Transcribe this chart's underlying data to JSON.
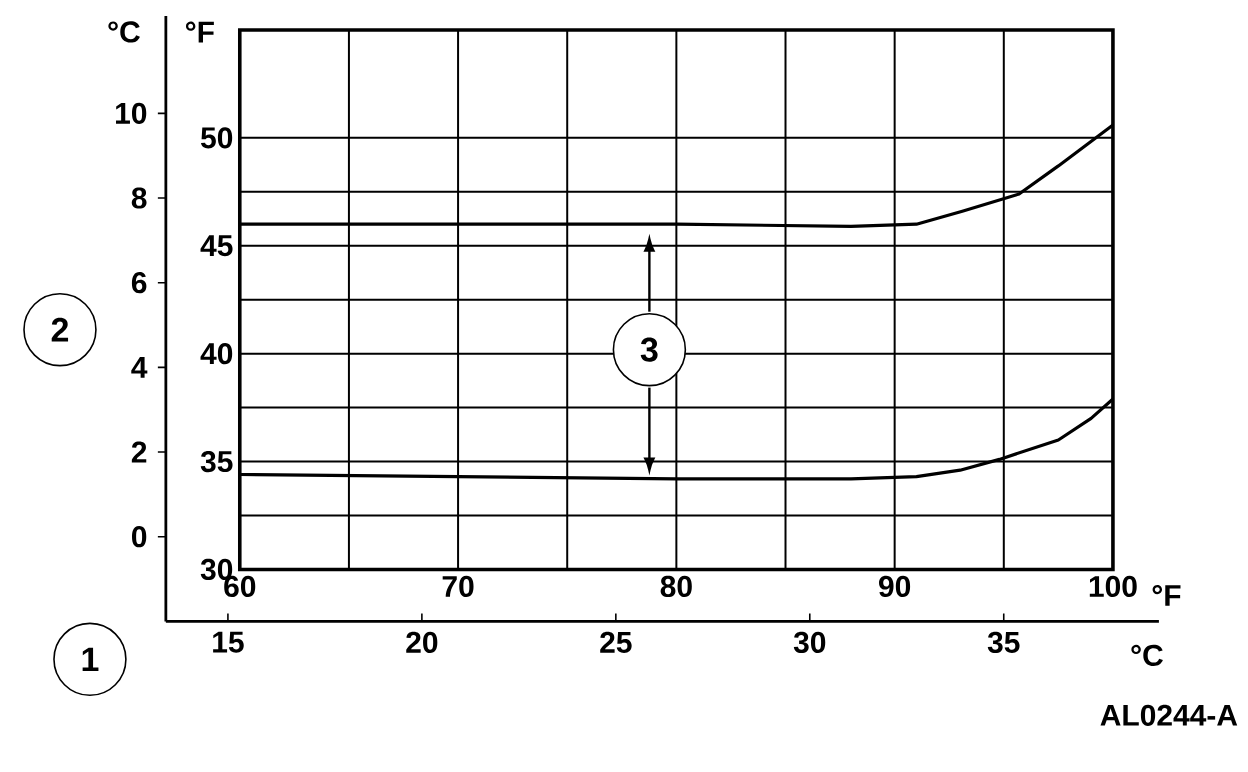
{
  "chart_data": {
    "type": "line",
    "xlabel": "°F",
    "x2label": "°C",
    "ylabel": "°F",
    "y2label": "°C",
    "xlim": [
      60,
      100
    ],
    "xticks": [
      60,
      70,
      80,
      90,
      100
    ],
    "ylim": [
      30,
      55
    ],
    "yticks": [
      30,
      35,
      40,
      45,
      50
    ],
    "x2lim": [
      13.4,
      39.0
    ],
    "x2ticks": [
      15,
      20,
      25,
      30,
      35
    ],
    "y2lim": [
      -2.0,
      12.3
    ],
    "y2ticks": [
      0,
      2,
      4,
      6,
      8,
      10
    ],
    "grid": true,
    "marker": "none",
    "line_style": "solid",
    "series": [
      {
        "color": "#000000",
        "x": [
          60,
          70,
          80,
          88,
          91,
          93.1,
          95.7,
          97.5,
          100
        ],
        "values": [
          46.0,
          46.0,
          46.0,
          45.9,
          46.0,
          46.6,
          47.4,
          48.7,
          50.6
        ]
      },
      {
        "color": "#000000",
        "x": [
          60,
          70,
          80,
          88,
          91,
          93,
          94.8,
          97.5,
          99,
          100
        ],
        "values": [
          34.4,
          34.3,
          34.2,
          34.2,
          34.3,
          34.6,
          35.1,
          36.0,
          37.0,
          37.9
        ]
      }
    ],
    "annotations": [
      "1",
      "2",
      "3",
      "AL0244-A"
    ]
  }
}
